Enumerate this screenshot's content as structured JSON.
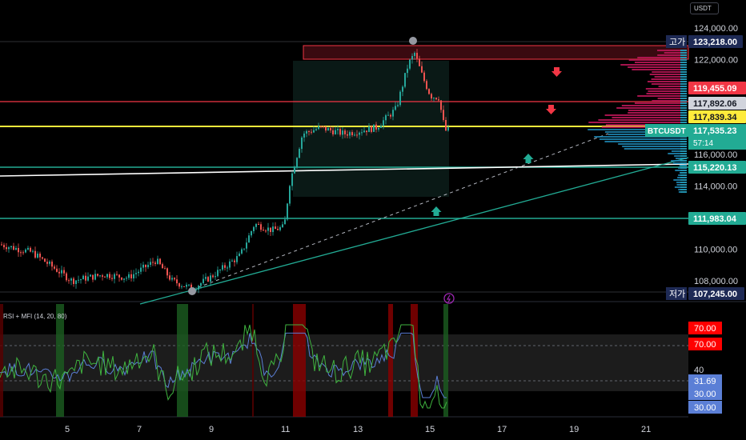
{
  "currency": "USDT",
  "price_axis": {
    "ticks": [
      "124,000.00",
      "122,000.00",
      "116,000.00",
      "114,000.00",
      "110,000.00",
      "108,000.00"
    ],
    "ylim": [
      106600,
      124600
    ]
  },
  "labels": {
    "high": {
      "tag": "고가",
      "price": "123,218.00"
    },
    "low": {
      "tag": "저가",
      "price": "107,245.00"
    },
    "res_red": "119,455.09",
    "p_gray": "117,892.06",
    "p_yellow": "117,839.34",
    "symbol": "BTCUSDT",
    "last_price": "117,535.23",
    "countdown": "57:14",
    "sup_teal": "115,220.13",
    "sup_teal2": "111,983.04"
  },
  "indicator": {
    "title": "RSI + MFI (14, 20, 80)",
    "axis_labels": [
      "70.00",
      "70.00",
      "40",
      "31.69",
      "30.00",
      "30.00"
    ]
  },
  "time_axis": {
    "ticks": [
      "5",
      "7",
      "9",
      "11",
      "13",
      "15",
      "17",
      "19",
      "21"
    ]
  },
  "colors": {
    "up": "#26a69a",
    "down": "#ef5350",
    "yellow": "#ffeb3b",
    "red_line": "#f23645",
    "teal": "#22ab94",
    "rsi": "#5b7fd6",
    "mfi": "#3fb33f"
  },
  "chart_data": {
    "type": "candlestick",
    "symbol": "BTCUSDT",
    "price_range": [
      106600,
      124600
    ],
    "candles_close_path": [
      {
        "x": "4",
        "price": 110300
      },
      {
        "x": "4.5",
        "price": 109200
      },
      {
        "x": "5",
        "price": 107900
      },
      {
        "x": "5.5",
        "price": 108400
      },
      {
        "x": "6",
        "price": 108300
      },
      {
        "x": "7",
        "price": 108800
      },
      {
        "x": "7.5",
        "price": 109100
      },
      {
        "x": "8",
        "price": 108200
      },
      {
        "x": "8.5",
        "price": 107500
      },
      {
        "x": "9",
        "price": 108300
      },
      {
        "x": "10",
        "price": 109500
      },
      {
        "x": "10.5",
        "price": 111800
      },
      {
        "x": "11",
        "price": 111300
      },
      {
        "x": "11.2",
        "price": 114100
      },
      {
        "x": "11.5",
        "price": 117400
      },
      {
        "x": "12",
        "price": 117600
      },
      {
        "x": "13",
        "price": 117800
      },
      {
        "x": "13.8",
        "price": 118700
      },
      {
        "x": "14.5",
        "price": 122300
      },
      {
        "x": "15",
        "price": 120000
      },
      {
        "x": "15.5",
        "price": 117535
      }
    ],
    "horizontal_levels": [
      123218,
      119455.09,
      117892.06,
      117839.34,
      115220.13,
      111983.04,
      107245
    ],
    "annotations": [
      "고가 123,218.00",
      "저가 107,245.00"
    ]
  }
}
